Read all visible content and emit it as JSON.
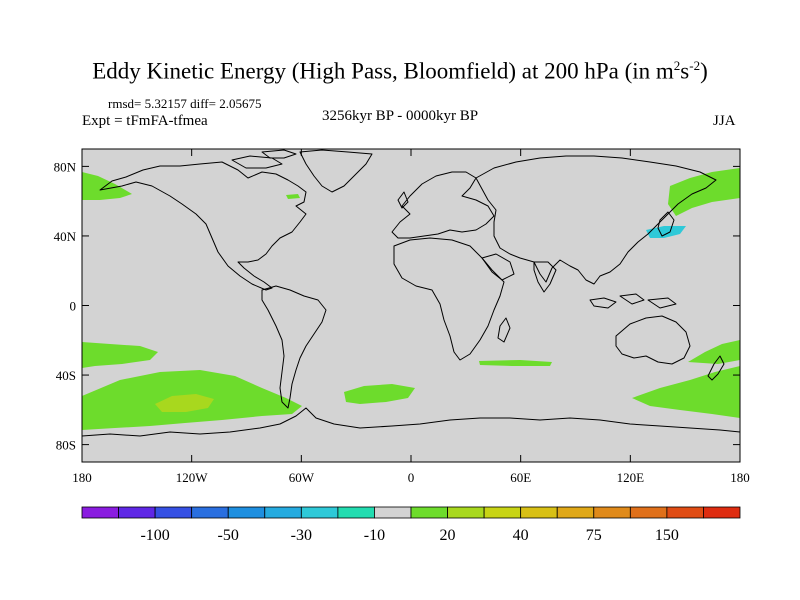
{
  "header": {
    "title_main": "Eddy Kinetic Energy (High Pass, Bloomfield) at 200 hPa (in m",
    "title_sup1": "2",
    "title_s": "s",
    "title_sup2": "-2",
    "title_end": ")",
    "stats": "rmsd= 5.32157 diff= 2.05675",
    "expt": "Expt = tFmFA-tfmea",
    "period": "3256kyr BP - 0000kyr BP",
    "season": "JJA"
  },
  "map": {
    "lon_range": [
      -180,
      180
    ],
    "lat_range": [
      -90,
      90
    ],
    "x_ticks": [
      {
        "lon": -180,
        "label": "180"
      },
      {
        "lon": -120,
        "label": "120W"
      },
      {
        "lon": -60,
        "label": "60W"
      },
      {
        "lon": 0,
        "label": "0"
      },
      {
        "lon": 60,
        "label": "60E"
      },
      {
        "lon": 120,
        "label": "120E"
      },
      {
        "lon": 180,
        "label": "180"
      }
    ],
    "y_ticks": [
      {
        "lat": 80,
        "label": "80N"
      },
      {
        "lat": 40,
        "label": "40N"
      },
      {
        "lat": 0,
        "label": "0"
      },
      {
        "lat": -40,
        "label": "40S"
      },
      {
        "lat": -80,
        "label": "80S"
      }
    ],
    "background_color": "#d3d3d3",
    "coastline_color": "#000000"
  },
  "colorbar": {
    "colors": [
      "#8a1ce0",
      "#5f27e6",
      "#3550e4",
      "#2a6fe0",
      "#1e8fe0",
      "#25abe0",
      "#2ec9d8",
      "#22dcb0",
      "#d3d3d3",
      "#6ddc2c",
      "#a8d81e",
      "#c8d415",
      "#d8c015",
      "#e0a818",
      "#e08a1a",
      "#e0701a",
      "#e04c14",
      "#de2c10"
    ],
    "labels": [
      {
        "after_index": 1,
        "label": "-100"
      },
      {
        "after_index": 3,
        "label": "-50"
      },
      {
        "after_index": 5,
        "label": "-30"
      },
      {
        "after_index": 7,
        "label": "-10"
      },
      {
        "after_index": 9,
        "label": "20"
      },
      {
        "after_index": 11,
        "label": "40"
      },
      {
        "after_index": 13,
        "label": "75"
      },
      {
        "after_index": 15,
        "label": "150"
      }
    ]
  }
}
